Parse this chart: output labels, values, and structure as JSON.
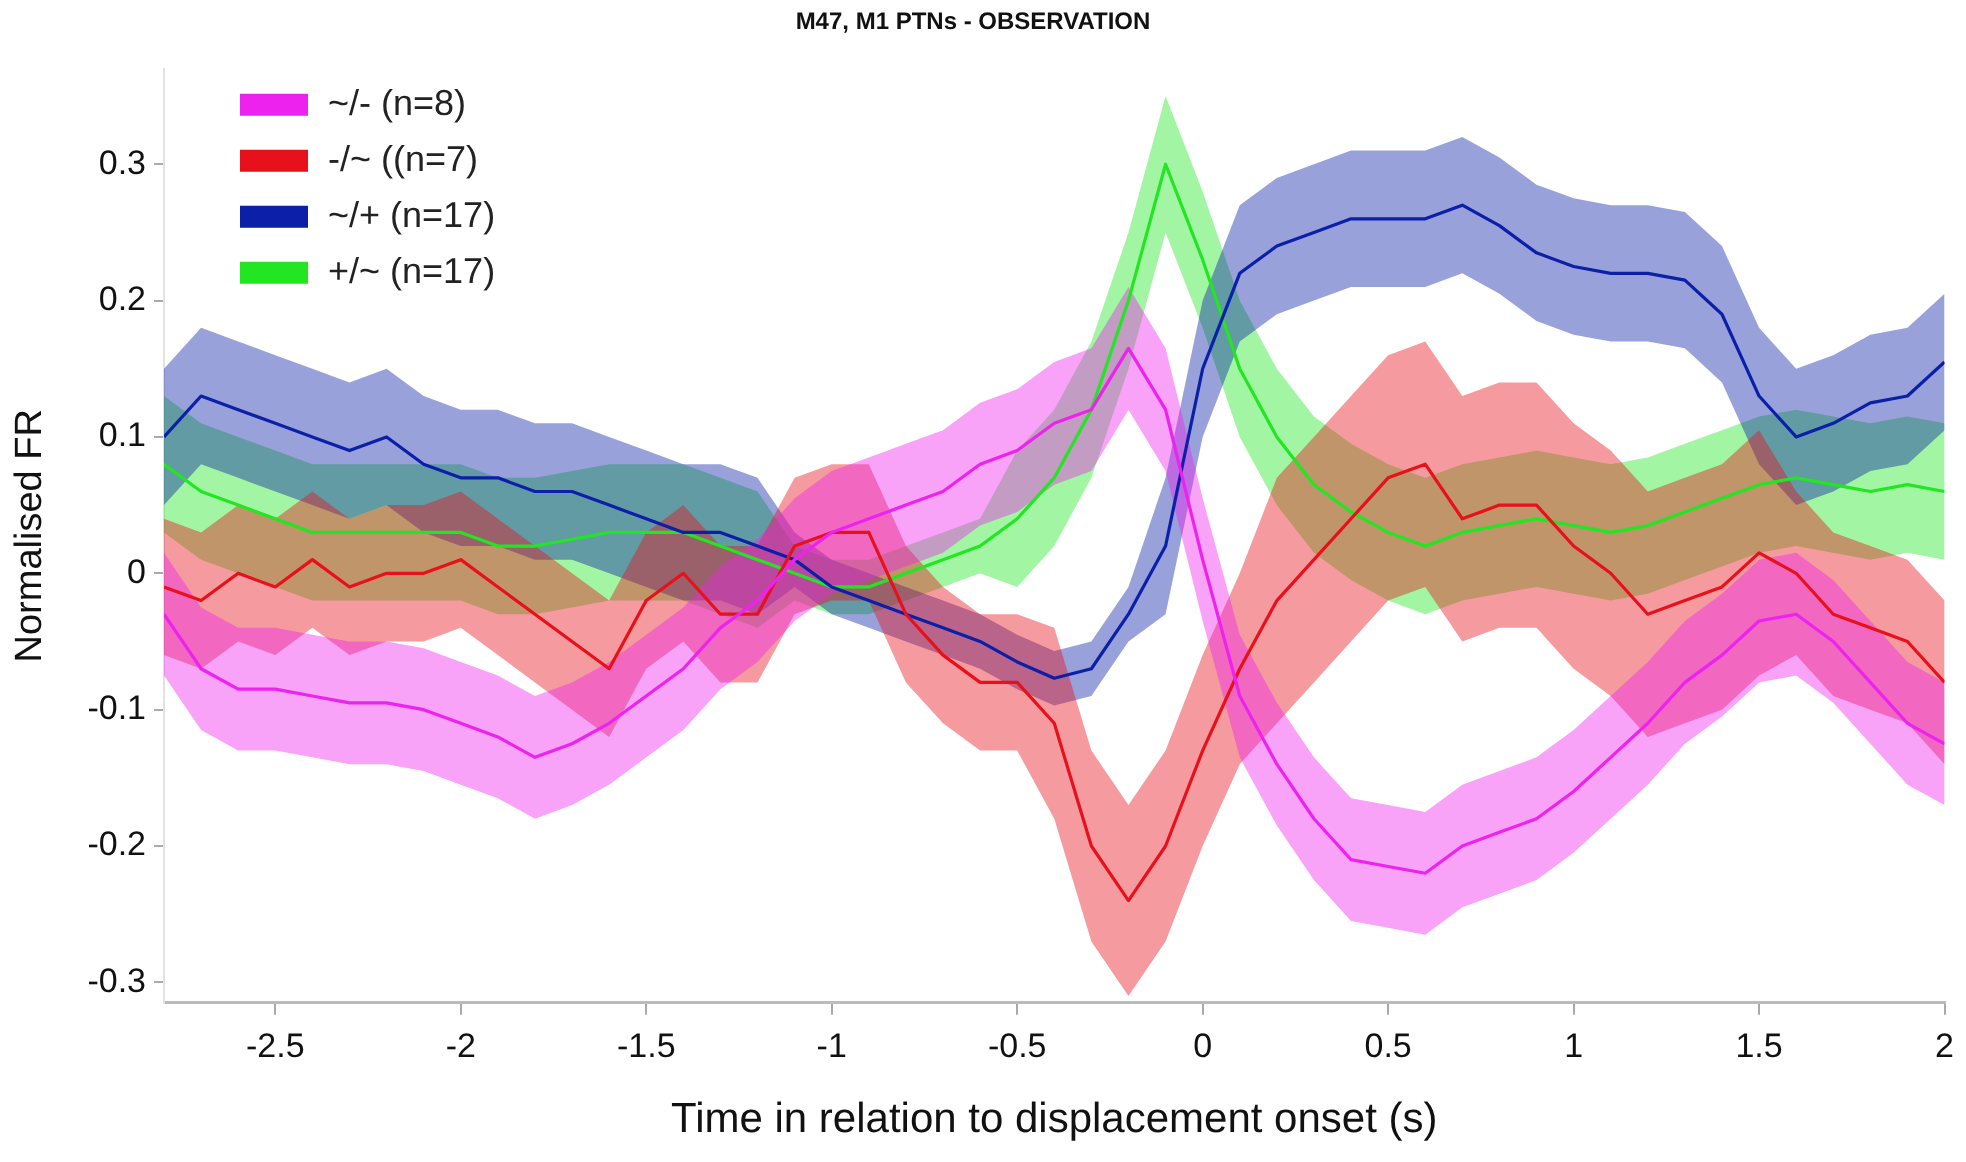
{
  "chart_data": {
    "type": "line",
    "title": "M47, M1 PTNs - OBSERVATION",
    "xlabel": "Time in relation to displacement onset (s)",
    "ylabel": "Normalised FR",
    "x": [
      -2.8,
      -2.7,
      -2.6,
      -2.5,
      -2.4,
      -2.3,
      -2.2,
      -2.1,
      -2.0,
      -1.9,
      -1.8,
      -1.7,
      -1.6,
      -1.5,
      -1.4,
      -1.3,
      -1.2,
      -1.1,
      -1.0,
      -0.9,
      -0.8,
      -0.7,
      -0.6,
      -0.5,
      -0.4,
      -0.3,
      -0.2,
      -0.1,
      0.0,
      0.1,
      0.2,
      0.3,
      0.4,
      0.5,
      0.6,
      0.7,
      0.8,
      0.9,
      1.0,
      1.1,
      1.2,
      1.3,
      1.4,
      1.5,
      1.6,
      1.7,
      1.8,
      1.9,
      2.0
    ],
    "series": [
      {
        "name": "~/- (n=8)",
        "color": "#ee22ee",
        "values": [
          -0.03,
          -0.07,
          -0.085,
          -0.085,
          -0.09,
          -0.095,
          -0.095,
          -0.1,
          -0.11,
          -0.12,
          -0.135,
          -0.125,
          -0.11,
          -0.09,
          -0.07,
          -0.04,
          -0.02,
          0.01,
          0.03,
          0.04,
          0.05,
          0.06,
          0.08,
          0.09,
          0.11,
          0.12,
          0.165,
          0.12,
          0.01,
          -0.09,
          -0.14,
          -0.18,
          -0.21,
          -0.215,
          -0.22,
          -0.2,
          -0.19,
          -0.18,
          -0.16,
          -0.135,
          -0.11,
          -0.08,
          -0.06,
          -0.035,
          -0.03,
          -0.05,
          -0.08,
          -0.11,
          -0.125
        ],
        "upper": [
          0.015,
          -0.025,
          -0.04,
          -0.04,
          -0.045,
          -0.05,
          -0.05,
          -0.055,
          -0.065,
          -0.075,
          -0.09,
          -0.08,
          -0.065,
          -0.045,
          -0.025,
          0.005,
          0.025,
          0.055,
          0.075,
          0.085,
          0.095,
          0.105,
          0.125,
          0.135,
          0.155,
          0.165,
          0.21,
          0.165,
          0.055,
          -0.045,
          -0.095,
          -0.135,
          -0.165,
          -0.17,
          -0.175,
          -0.155,
          -0.145,
          -0.135,
          -0.115,
          -0.09,
          -0.065,
          -0.035,
          -0.015,
          0.01,
          0.015,
          -0.005,
          -0.035,
          -0.065,
          -0.08
        ],
        "lower": [
          -0.075,
          -0.115,
          -0.13,
          -0.13,
          -0.135,
          -0.14,
          -0.14,
          -0.145,
          -0.155,
          -0.165,
          -0.18,
          -0.17,
          -0.155,
          -0.135,
          -0.115,
          -0.085,
          -0.065,
          -0.035,
          -0.015,
          -0.005,
          0.005,
          0.015,
          0.035,
          0.045,
          0.065,
          0.075,
          0.12,
          0.075,
          -0.035,
          -0.135,
          -0.185,
          -0.225,
          -0.255,
          -0.26,
          -0.265,
          -0.245,
          -0.235,
          -0.225,
          -0.205,
          -0.18,
          -0.155,
          -0.125,
          -0.105,
          -0.08,
          -0.075,
          -0.095,
          -0.125,
          -0.155,
          -0.17
        ]
      },
      {
        "name": "-/~ ((n=7)",
        "color": "#e8101a",
        "values": [
          -0.01,
          -0.02,
          0.0,
          -0.01,
          0.01,
          -0.01,
          0.0,
          0.0,
          0.01,
          -0.01,
          -0.03,
          -0.05,
          -0.07,
          -0.02,
          0.0,
          -0.03,
          -0.03,
          0.02,
          0.03,
          0.03,
          -0.03,
          -0.06,
          -0.08,
          -0.08,
          -0.11,
          -0.2,
          -0.24,
          -0.2,
          -0.13,
          -0.07,
          -0.02,
          0.01,
          0.04,
          0.07,
          0.08,
          0.04,
          0.05,
          0.05,
          0.02,
          0.0,
          -0.03,
          -0.02,
          -0.01,
          0.015,
          0.0,
          -0.03,
          -0.04,
          -0.05,
          -0.08
        ],
        "upper": [
          0.04,
          0.03,
          0.05,
          0.04,
          0.06,
          0.04,
          0.05,
          0.05,
          0.06,
          0.04,
          0.02,
          0.0,
          -0.02,
          0.03,
          0.05,
          0.02,
          0.02,
          0.07,
          0.08,
          0.08,
          0.02,
          -0.01,
          -0.03,
          -0.03,
          -0.04,
          -0.13,
          -0.17,
          -0.13,
          -0.06,
          0.0,
          0.07,
          0.1,
          0.13,
          0.16,
          0.17,
          0.13,
          0.14,
          0.14,
          0.11,
          0.09,
          0.06,
          0.07,
          0.08,
          0.105,
          0.06,
          0.03,
          0.02,
          0.01,
          -0.02
        ],
        "lower": [
          -0.06,
          -0.07,
          -0.05,
          -0.06,
          -0.04,
          -0.06,
          -0.05,
          -0.05,
          -0.04,
          -0.06,
          -0.08,
          -0.1,
          -0.12,
          -0.07,
          -0.05,
          -0.08,
          -0.08,
          -0.03,
          -0.02,
          -0.02,
          -0.08,
          -0.11,
          -0.13,
          -0.13,
          -0.18,
          -0.27,
          -0.31,
          -0.27,
          -0.2,
          -0.14,
          -0.11,
          -0.08,
          -0.05,
          -0.02,
          -0.01,
          -0.05,
          -0.04,
          -0.04,
          -0.07,
          -0.09,
          -0.12,
          -0.11,
          -0.1,
          -0.075,
          -0.06,
          -0.09,
          -0.1,
          -0.11,
          -0.14
        ]
      },
      {
        "name": "~/+ (n=17)",
        "color": "#0b1fa8",
        "values": [
          0.1,
          0.13,
          0.12,
          0.11,
          0.1,
          0.09,
          0.1,
          0.08,
          0.07,
          0.07,
          0.06,
          0.06,
          0.05,
          0.04,
          0.03,
          0.03,
          0.02,
          0.01,
          -0.01,
          -0.02,
          -0.03,
          -0.04,
          -0.05,
          -0.065,
          -0.077,
          -0.07,
          -0.03,
          0.02,
          0.15,
          0.22,
          0.24,
          0.25,
          0.26,
          0.26,
          0.26,
          0.27,
          0.255,
          0.235,
          0.225,
          0.22,
          0.22,
          0.215,
          0.19,
          0.13,
          0.1,
          0.11,
          0.125,
          0.13,
          0.155
        ],
        "upper": [
          0.15,
          0.18,
          0.17,
          0.16,
          0.15,
          0.14,
          0.15,
          0.13,
          0.12,
          0.12,
          0.11,
          0.11,
          0.1,
          0.09,
          0.08,
          0.08,
          0.07,
          0.03,
          0.01,
          0.0,
          -0.01,
          -0.02,
          -0.03,
          -0.045,
          -0.057,
          -0.05,
          -0.01,
          0.07,
          0.2,
          0.27,
          0.29,
          0.3,
          0.31,
          0.31,
          0.31,
          0.32,
          0.305,
          0.285,
          0.275,
          0.27,
          0.27,
          0.265,
          0.24,
          0.18,
          0.15,
          0.16,
          0.175,
          0.18,
          0.205
        ],
        "lower": [
          0.05,
          0.08,
          0.07,
          0.06,
          0.05,
          0.04,
          0.05,
          0.03,
          0.02,
          0.02,
          0.01,
          0.01,
          0.0,
          -0.01,
          -0.02,
          -0.02,
          -0.03,
          -0.01,
          -0.03,
          -0.04,
          -0.05,
          -0.06,
          -0.07,
          -0.085,
          -0.097,
          -0.09,
          -0.05,
          -0.03,
          0.1,
          0.17,
          0.19,
          0.2,
          0.21,
          0.21,
          0.21,
          0.22,
          0.205,
          0.185,
          0.175,
          0.17,
          0.17,
          0.165,
          0.14,
          0.08,
          0.05,
          0.06,
          0.075,
          0.08,
          0.105
        ]
      },
      {
        "name": "+/~ (n=17)",
        "color": "#22e622",
        "values": [
          0.08,
          0.06,
          0.05,
          0.04,
          0.03,
          0.03,
          0.03,
          0.03,
          0.03,
          0.02,
          0.02,
          0.025,
          0.03,
          0.03,
          0.03,
          0.02,
          0.01,
          0.0,
          -0.01,
          -0.01,
          0.0,
          0.01,
          0.02,
          0.04,
          0.07,
          0.12,
          0.2,
          0.3,
          0.23,
          0.15,
          0.1,
          0.065,
          0.045,
          0.03,
          0.02,
          0.03,
          0.035,
          0.04,
          0.035,
          0.03,
          0.035,
          0.045,
          0.055,
          0.065,
          0.07,
          0.065,
          0.06,
          0.065,
          0.06
        ],
        "upper": [
          0.13,
          0.11,
          0.1,
          0.09,
          0.08,
          0.08,
          0.08,
          0.08,
          0.08,
          0.07,
          0.07,
          0.075,
          0.08,
          0.08,
          0.08,
          0.07,
          0.06,
          0.02,
          0.01,
          0.01,
          0.02,
          0.03,
          0.04,
          0.09,
          0.12,
          0.17,
          0.25,
          0.35,
          0.28,
          0.2,
          0.15,
          0.115,
          0.095,
          0.08,
          0.07,
          0.08,
          0.085,
          0.09,
          0.085,
          0.08,
          0.085,
          0.095,
          0.105,
          0.115,
          0.12,
          0.115,
          0.11,
          0.115,
          0.11
        ],
        "lower": [
          0.03,
          0.01,
          0.0,
          -0.01,
          -0.02,
          -0.02,
          -0.02,
          -0.02,
          -0.02,
          -0.03,
          -0.03,
          -0.025,
          -0.02,
          -0.02,
          -0.02,
          -0.03,
          -0.04,
          -0.02,
          -0.03,
          -0.03,
          -0.02,
          -0.01,
          0.0,
          -0.01,
          0.02,
          0.07,
          0.15,
          0.25,
          0.18,
          0.1,
          0.05,
          0.015,
          -0.005,
          -0.02,
          -0.03,
          -0.02,
          -0.015,
          -0.01,
          -0.015,
          -0.02,
          -0.015,
          -0.005,
          0.005,
          0.015,
          0.02,
          0.015,
          0.01,
          0.015,
          0.01
        ]
      }
    ],
    "xlim": [
      -2.8,
      2
    ],
    "xticks": [
      -2.5,
      -2,
      -1.5,
      -1,
      -0.5,
      0,
      0.5,
      1,
      1.5,
      2
    ],
    "ylim": [
      -0.315,
      0.37
    ],
    "yticks": [
      -0.3,
      -0.2,
      -0.1,
      0,
      0.1,
      0.2,
      0.3
    ],
    "grid": false,
    "legend": "top left",
    "marker": "none",
    "line_style": "solid"
  }
}
